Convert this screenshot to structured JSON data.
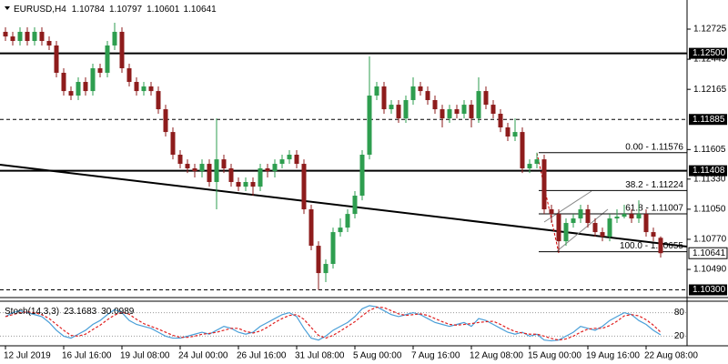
{
  "chart_data": {
    "type": "candlestick",
    "symbol": "EURUSD,H4",
    "categories": [
      "12 Jul 2019",
      null,
      null,
      null,
      null,
      null,
      null,
      null,
      "16 Jul 16:00",
      null,
      null,
      null,
      null,
      null,
      null,
      null,
      "19 Jul 08:00",
      null,
      null,
      null,
      null,
      null,
      null,
      null,
      "24 Jul 00:00",
      null,
      null,
      null,
      null,
      null,
      null,
      null,
      "26 Jul 16:00",
      null,
      null,
      null,
      null,
      null,
      null,
      null,
      "31 Jul 08:00",
      null,
      null,
      null,
      null,
      null,
      null,
      null,
      "5 Aug 00:00",
      null,
      null,
      null,
      null,
      null,
      null,
      null,
      "7 Aug 16:00",
      null,
      null,
      null,
      null,
      null,
      null,
      null,
      "12 Aug 08:00",
      null,
      null,
      null,
      null,
      null,
      null,
      null,
      "15 Aug 00:00",
      null,
      null,
      null,
      null,
      null,
      null,
      null,
      "19 Aug 16:00",
      null,
      null,
      null,
      null,
      null,
      null,
      null,
      "22 Aug 08:00",
      null,
      null
    ],
    "open": [
      1.127,
      1.12657,
      1.12615,
      1.127,
      1.12615,
      1.127,
      1.12615,
      1.12573,
      1.12319,
      1.12149,
      1.12107,
      1.12234,
      1.12149,
      1.12361,
      1.12319,
      1.12573,
      1.127,
      1.12361,
      1.12234,
      1.12149,
      1.12192,
      1.12149,
      1.1198,
      1.11768,
      1.11557,
      1.11472,
      1.1143,
      1.11404,
      1.11472,
      1.11303,
      1.11514,
      1.1143,
      1.11303,
      1.1126,
      1.11303,
      1.1126,
      1.1143,
      1.11404,
      1.11472,
      1.11514,
      1.11557,
      1.11472,
      1.11049,
      1.1071,
      1.10456,
      1.10541,
      1.10837,
      1.10879,
      1.11006,
      1.11176,
      1.11557,
      1.12107,
      1.12192,
      1.1198,
      1.12022,
      1.11895,
      1.12065,
      1.12192,
      1.12149,
      1.12065,
      1.1198,
      1.11895,
      1.1198,
      1.11938,
      1.12022,
      1.11895,
      1.12149,
      1.12022,
      1.11938,
      1.11811,
      1.11726,
      1.11768,
      1.1143,
      1.11472,
      1.11514,
      1.11049,
      1.11006,
      1.10752,
      1.10922,
      1.10964,
      1.11049,
      1.10922,
      1.10837,
      1.10795,
      1.10964,
      1.10981,
      1.11006,
      1.10964,
      1.11006,
      1.10837,
      1.10784
    ],
    "high": [
      1.12742,
      1.127,
      1.12742,
      1.12742,
      1.12742,
      1.12742,
      1.12657,
      1.12615,
      1.12361,
      1.12192,
      1.12276,
      1.12276,
      1.12403,
      1.12403,
      1.12615,
      1.12784,
      1.12742,
      1.12403,
      1.12276,
      1.12234,
      1.12234,
      1.12192,
      1.12022,
      1.11811,
      1.11599,
      1.11514,
      1.11472,
      1.11514,
      1.11514,
      1.11895,
      1.11557,
      1.11472,
      1.11345,
      1.11345,
      1.11345,
      1.11472,
      1.11472,
      1.11514,
      1.11557,
      1.11599,
      1.11599,
      1.11514,
      1.11091,
      1.10752,
      1.10583,
      1.10879,
      1.10964,
      1.11049,
      1.11218,
      1.11599,
      1.12471,
      1.12234,
      1.12234,
      1.12065,
      1.12065,
      1.12107,
      1.12276,
      1.12234,
      1.12192,
      1.12107,
      1.12022,
      1.12022,
      1.12022,
      1.12065,
      1.12065,
      1.12276,
      1.12192,
      1.12065,
      1.1198,
      1.11853,
      1.11895,
      1.11811,
      1.11514,
      1.11576,
      1.11557,
      1.11091,
      1.11049,
      1.10964,
      1.11006,
      1.11091,
      1.11091,
      1.10964,
      1.10879,
      1.11006,
      1.11049,
      1.11091,
      1.11049,
      1.11133,
      1.11049,
      1.10879,
      1.10797
    ],
    "low": [
      1.12615,
      1.12573,
      1.12573,
      1.12573,
      1.12573,
      1.12573,
      1.1253,
      1.12276,
      1.12107,
      1.12065,
      1.12065,
      1.12107,
      1.12107,
      1.12276,
      1.12276,
      1.1253,
      1.12319,
      1.12192,
      1.12107,
      1.12107,
      1.12107,
      1.11938,
      1.11726,
      1.11514,
      1.1143,
      1.11387,
      1.11345,
      1.11345,
      1.1126,
      1.11049,
      1.11387,
      1.1126,
      1.11218,
      1.11218,
      1.11176,
      1.11218,
      1.11345,
      1.11345,
      1.1143,
      1.11472,
      1.1143,
      1.11006,
      1.10668,
      1.103,
      1.10372,
      1.10498,
      1.10795,
      1.10837,
      1.10964,
      1.11133,
      1.11514,
      1.12065,
      1.11938,
      1.11938,
      1.11853,
      1.11853,
      1.12022,
      1.12107,
      1.12022,
      1.11938,
      1.11811,
      1.11853,
      1.11895,
      1.11895,
      1.11811,
      1.11853,
      1.1198,
      1.11895,
      1.11768,
      1.11684,
      1.11684,
      1.11387,
      1.11387,
      1.1143,
      1.11006,
      1.10922,
      1.10655,
      1.1071,
      1.10879,
      1.10922,
      1.10879,
      1.10795,
      1.10752,
      1.10752,
      1.10922,
      1.10964,
      1.10922,
      1.10922,
      1.10795,
      1.10752,
      1.10601
    ],
    "close": [
      1.12657,
      1.12615,
      1.127,
      1.12615,
      1.127,
      1.12615,
      1.12573,
      1.12319,
      1.12149,
      1.12107,
      1.12234,
      1.12149,
      1.12361,
      1.12319,
      1.12573,
      1.127,
      1.12361,
      1.12234,
      1.12149,
      1.12192,
      1.12149,
      1.1198,
      1.11768,
      1.11557,
      1.11472,
      1.1143,
      1.11404,
      1.11472,
      1.11303,
      1.11514,
      1.1143,
      1.11303,
      1.1126,
      1.11303,
      1.1126,
      1.1143,
      1.11404,
      1.11472,
      1.11514,
      1.11557,
      1.11472,
      1.11049,
      1.1071,
      1.10456,
      1.10541,
      1.10837,
      1.10879,
      1.11006,
      1.11176,
      1.11557,
      1.12107,
      1.12192,
      1.1198,
      1.12022,
      1.11895,
      1.12065,
      1.12192,
      1.12149,
      1.12065,
      1.1198,
      1.11895,
      1.1198,
      1.11938,
      1.12022,
      1.11895,
      1.12149,
      1.12022,
      1.11938,
      1.11811,
      1.11726,
      1.11768,
      1.1143,
      1.11472,
      1.11514,
      1.11049,
      1.11006,
      1.10752,
      1.10922,
      1.10964,
      1.11049,
      1.10922,
      1.10837,
      1.10795,
      1.10964,
      1.10981,
      1.11006,
      1.10964,
      1.11006,
      1.10837,
      1.10795,
      1.10641
    ],
    "bull_color": "#2e9e4f",
    "bear_color": "#8e1c1c",
    "ylim": [
      1.10245,
      1.12996
    ],
    "yticks": [
      1.12725,
      1.12445,
      1.12165,
      1.11605,
      {
        "value": 1.1133,
        "label": "1.11330"
      },
      {
        "value": 1.1105,
        "label": "1.11050"
      },
      {
        "value": 1.1077,
        "label": "1.10770"
      },
      {
        "value": 1.1049,
        "label": "1.10490"
      }
    ],
    "hlines": [
      {
        "value": 1.125,
        "label": "1.12500",
        "style": "solid"
      },
      {
        "value": 1.11885,
        "label": "1.11885",
        "style": "dashed"
      },
      {
        "value": 1.11408,
        "label": "1.11408",
        "style": "solid"
      },
      {
        "value": 1.103,
        "label": "1.10300",
        "style": "dashed"
      }
    ],
    "fib": [
      {
        "value": 1.11576,
        "label": "0.00 - 1.11576"
      },
      {
        "value": 1.11224,
        "label": "38.2 - 1.11224"
      },
      {
        "value": 1.11007,
        "label": "61.8 - 1.11007"
      },
      {
        "value": 1.10655,
        "label": "100.0 - 1.10655"
      }
    ],
    "indicator": {
      "name": "Stoch(14,3,3)",
      "ylim": [
        0,
        100
      ],
      "yticks": [
        80,
        20
      ],
      "series": [
        {
          "color": "#4a9fd8",
          "style": "solid",
          "values": [
            70,
            80,
            85,
            80,
            75,
            70,
            55,
            35,
            20,
            15,
            25,
            35,
            50,
            60,
            75,
            88,
            80,
            60,
            50,
            45,
            40,
            30,
            20,
            15,
            15,
            20,
            25,
            30,
            25,
            35,
            45,
            40,
            30,
            25,
            30,
            45,
            55,
            65,
            75,
            80,
            70,
            40,
            15,
            10,
            20,
            35,
            45,
            55,
            70,
            90,
            98,
            95,
            85,
            75,
            70,
            75,
            80,
            75,
            65,
            55,
            50,
            45,
            50,
            55,
            45,
            65,
            60,
            50,
            40,
            30,
            25,
            30,
            20,
            25,
            10,
            8,
            10,
            20,
            30,
            45,
            40,
            35,
            45,
            60,
            70,
            80,
            75,
            60,
            50,
            35,
            23.1683
          ]
        },
        {
          "color": "#e02020",
          "style": "dashed",
          "values": [
            70,
            75,
            80,
            82,
            80,
            75,
            65,
            50,
            35,
            22,
            20,
            25,
            37,
            48,
            62,
            74,
            81,
            76,
            63,
            52,
            45,
            38,
            30,
            22,
            17,
            17,
            20,
            25,
            27,
            30,
            35,
            40,
            40,
            32,
            28,
            33,
            43,
            55,
            65,
            73,
            75,
            63,
            42,
            22,
            15,
            22,
            33,
            45,
            57,
            72,
            86,
            94,
            93,
            85,
            77,
            73,
            75,
            77,
            73,
            65,
            57,
            50,
            48,
            50,
            52,
            55,
            57,
            58,
            50,
            40,
            32,
            28,
            25,
            25,
            20,
            14,
            10,
            13,
            20,
            30,
            38,
            40,
            40,
            47,
            58,
            72,
            75,
            72,
            62,
            48,
            30.0989
          ]
        }
      ]
    }
  }
}
